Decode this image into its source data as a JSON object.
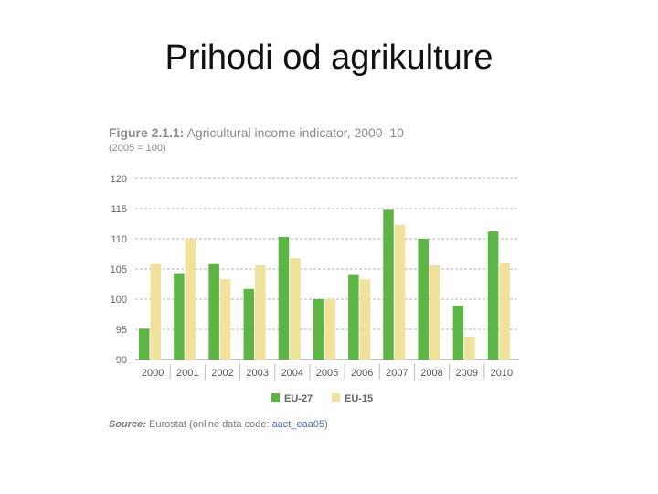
{
  "slide": {
    "title": "Prihodi od agrikulture"
  },
  "figure": {
    "title_bold": "Figure 2.1.1:",
    "title_rest": " Agricultural income indicator, 2000–10",
    "subtitle": "(2005 = 100)",
    "source_label": "Source:",
    "source_text": " Eurostat (online data code: ",
    "source_code": "aact_eaa05",
    "source_close": ")"
  },
  "chart_data": {
    "type": "bar",
    "categories": [
      "2000",
      "2001",
      "2002",
      "2003",
      "2004",
      "2005",
      "2006",
      "2007",
      "2008",
      "2009",
      "2010"
    ],
    "series": [
      {
        "name": "EU-27",
        "color": "#5cb544",
        "values": [
          95.1,
          104.3,
          105.8,
          101.7,
          110.3,
          100.0,
          104.0,
          114.8,
          110.0,
          98.9,
          111.2
        ]
      },
      {
        "name": "EU-15",
        "color": "#f0e29a",
        "values": [
          105.8,
          110.0,
          103.3,
          105.6,
          106.8,
          100.0,
          103.3,
          112.3,
          105.6,
          93.8,
          105.9
        ]
      }
    ],
    "ylim": [
      90,
      120
    ],
    "yticks": [
      90,
      95,
      100,
      105,
      110,
      115,
      120
    ],
    "grid": true,
    "legend": "bottom-center"
  }
}
